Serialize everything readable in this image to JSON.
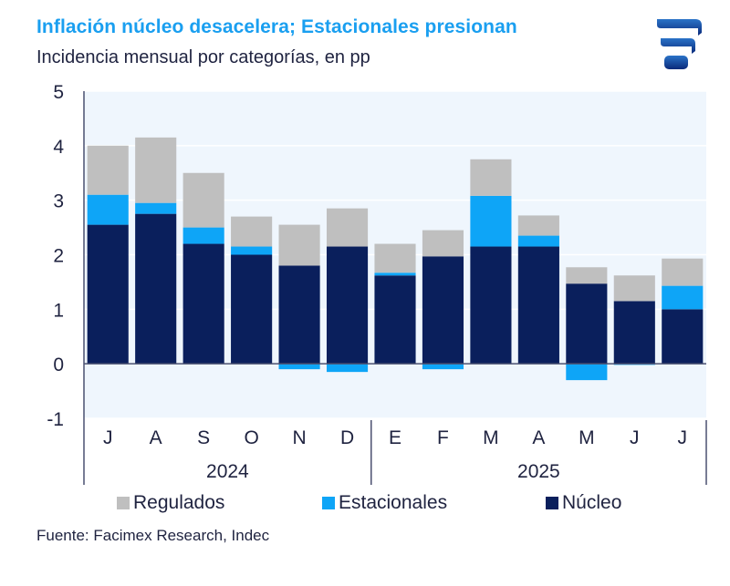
{
  "header": {
    "title": "Inflación núcleo desacelera; Estacionales presionan",
    "subtitle": "Incidencia mensual por categorías, en pp",
    "logo": "facimex-logo-icon"
  },
  "footer": {
    "source": "Fuente: Facimex Research, Indec"
  },
  "colors": {
    "regulados": "#bfbfbf",
    "estacionales": "#0ea5f7",
    "nucleo": "#0a1f5c",
    "plot_bg": "#eff6fd",
    "title": "#1a9ff0",
    "text": "#1f2340"
  },
  "chart_data": {
    "type": "bar",
    "stacked": true,
    "title": "Inflación núcleo desacelera; Estacionales presionan",
    "subtitle": "Incidencia mensual por categorías, en pp",
    "xlabel": "",
    "ylabel": "",
    "ylim": [
      -1,
      5
    ],
    "yticks": [
      "5",
      "4",
      "3",
      "2",
      "1",
      "0",
      "-1"
    ],
    "ytick_values": [
      5,
      4,
      3,
      2,
      1,
      0,
      -1
    ],
    "grid": true,
    "legend_position": "bottom",
    "categories": [
      "J",
      "A",
      "S",
      "O",
      "N",
      "D",
      "E",
      "F",
      "M",
      "A",
      "M",
      "J",
      "J"
    ],
    "year_groups": [
      {
        "label": "2024",
        "count": 6
      },
      {
        "label": "2025",
        "count": 7
      }
    ],
    "series": [
      {
        "name": "Núcleo",
        "color": "#0a1f5c",
        "values": [
          2.55,
          2.75,
          2.2,
          2.0,
          1.8,
          2.15,
          1.62,
          1.97,
          2.15,
          2.15,
          1.47,
          1.15,
          1.0
        ]
      },
      {
        "name": "Estacionales",
        "color": "#0ea5f7",
        "values": [
          0.55,
          0.2,
          0.3,
          0.15,
          -0.1,
          -0.15,
          0.05,
          -0.1,
          0.93,
          0.2,
          -0.3,
          -0.02,
          0.43
        ]
      },
      {
        "name": "Regulados",
        "color": "#bfbfbf",
        "values": [
          0.9,
          1.2,
          1.0,
          0.55,
          0.75,
          0.7,
          0.53,
          0.48,
          0.67,
          0.37,
          0.3,
          0.47,
          0.5
        ]
      }
    ],
    "legend": [
      "Regulados",
      "Estacionales",
      "Núcleo"
    ]
  }
}
